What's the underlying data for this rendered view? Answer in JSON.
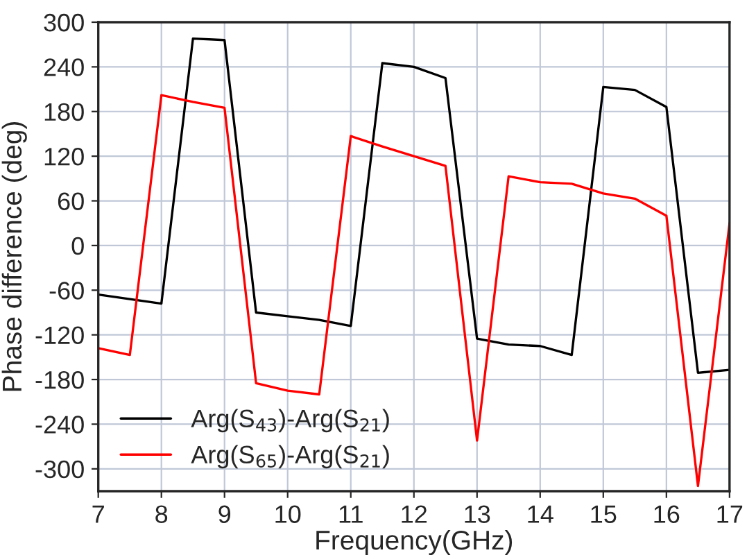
{
  "chart_data": {
    "type": "line",
    "xlabel": "Frequency(GHz)",
    "ylabel": "Phase difference (deg)",
    "x": [
      7,
      7.5,
      8,
      8.5,
      9,
      9.5,
      10,
      10.5,
      11,
      11.5,
      12,
      12.5,
      13,
      13.5,
      14,
      14.5,
      15,
      15.5,
      16,
      16.5,
      17
    ],
    "series": [
      {
        "name": "Arg(S$_{43}$)-Arg(S$_{21}$)",
        "color": "#000000",
        "values": [
          -66,
          -72,
          -78,
          278,
          276,
          -90,
          -95,
          -100,
          -108,
          245,
          240,
          225,
          -125,
          -133,
          -135,
          -147,
          213,
          209,
          186,
          -171,
          -167
        ]
      },
      {
        "name": "Arg(S$_{65}$)-Arg(S$_{21}$)",
        "color": "#ff0000",
        "values": [
          -138,
          -147,
          202,
          193,
          185,
          -185,
          -195,
          -200,
          147,
          133,
          120,
          107,
          -262,
          93,
          85,
          83,
          70,
          63,
          40,
          -323,
          30
        ]
      }
    ],
    "xlim": [
      7,
      17
    ],
    "ylim": [
      -330,
      300
    ],
    "xticks": [
      7,
      8,
      9,
      10,
      11,
      12,
      13,
      14,
      15,
      16,
      17
    ],
    "yticks": [
      -300,
      -240,
      -180,
      -120,
      -60,
      0,
      60,
      120,
      180,
      240,
      300
    ],
    "grid": true,
    "legend": "bottom left",
    "marker": "none",
    "line_style": "solid"
  }
}
